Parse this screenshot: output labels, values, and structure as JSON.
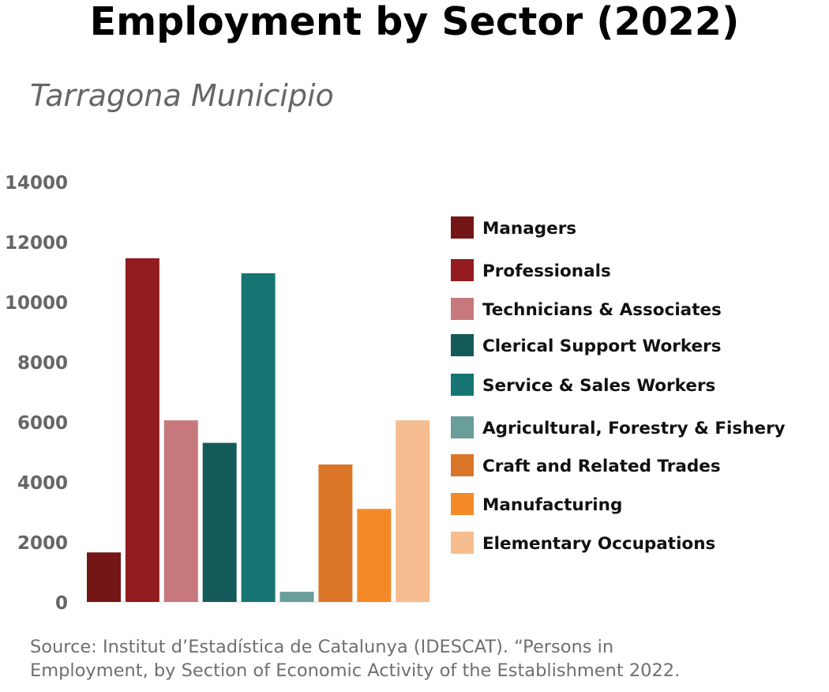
{
  "title": "Employment by Sector (2022)",
  "subtitle": "Tarragona Municipio",
  "source_lines": [
    "Source: Institut d’Estadística de Catalunya (IDESCAT). “Persons in",
    "Employment, by Section of Economic Activity of the Establishment 2022."
  ],
  "chart_data": {
    "type": "bar",
    "title": "Employment by Sector (2022)",
    "subtitle": "Tarragona Municipio",
    "xlabel": "",
    "ylabel": "",
    "ylim": [
      0,
      14000
    ],
    "yticks": [
      0,
      2000,
      4000,
      6000,
      8000,
      10000,
      12000,
      14000
    ],
    "grid": false,
    "legend_position": "right",
    "categories": [
      "Managers",
      "Professionals",
      "Technicians & Associates",
      "Clerical Support Workers",
      "Service & Sales Workers",
      "Agricultural, Forestry & Fishery",
      "Craft and Related Trades",
      "Manufacturing",
      "Elementary Occupations"
    ],
    "values": [
      1650,
      11450,
      6050,
      5300,
      10950,
      340,
      4580,
      3100,
      6050
    ],
    "colors": [
      "#741616",
      "#921c1f",
      "#c7787c",
      "#155a5a",
      "#167572",
      "#6a9e9a",
      "#db7628",
      "#f48a27",
      "#f6bd90"
    ]
  }
}
